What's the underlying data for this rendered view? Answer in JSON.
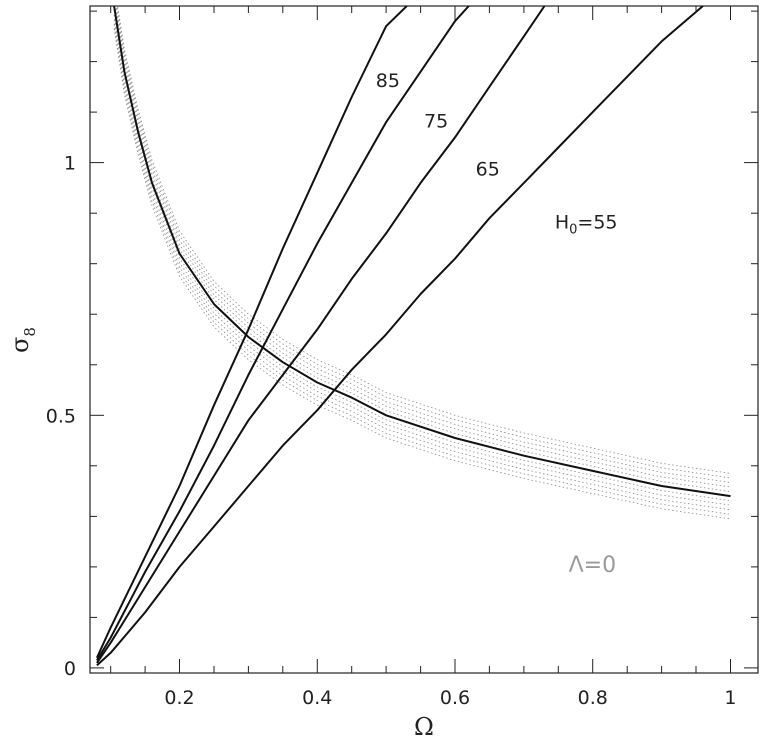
{
  "chart_data": {
    "type": "line",
    "title": "",
    "xlabel": "Ω",
    "ylabel": "σ",
    "ylabel_subscript": "8",
    "xlim": [
      0.07,
      1.04
    ],
    "ylim": [
      -0.01,
      1.31
    ],
    "grid": false,
    "x_ticks": [
      {
        "value": 0.2,
        "label": "0.2"
      },
      {
        "value": 0.4,
        "label": "0.4"
      },
      {
        "value": 0.6,
        "label": "0.6"
      },
      {
        "value": 0.8,
        "label": "0.8"
      },
      {
        "value": 1.0,
        "label": "1"
      }
    ],
    "y_ticks": [
      {
        "value": 0.0,
        "label": "0"
      },
      {
        "value": 0.5,
        "label": "0.5"
      },
      {
        "value": 1.0,
        "label": "1"
      }
    ],
    "series": [
      {
        "name": "85",
        "x": [
          0.08,
          0.1,
          0.15,
          0.2,
          0.25,
          0.3,
          0.35,
          0.4,
          0.45,
          0.5,
          0.53
        ],
        "y": [
          0.02,
          0.08,
          0.22,
          0.36,
          0.52,
          0.67,
          0.83,
          0.98,
          1.13,
          1.27,
          1.31
        ]
      },
      {
        "name": "75",
        "x": [
          0.08,
          0.1,
          0.15,
          0.2,
          0.25,
          0.3,
          0.35,
          0.4,
          0.45,
          0.5,
          0.55,
          0.6,
          0.62
        ],
        "y": [
          0.015,
          0.06,
          0.19,
          0.31,
          0.44,
          0.58,
          0.71,
          0.84,
          0.96,
          1.08,
          1.18,
          1.28,
          1.31
        ]
      },
      {
        "name": "65",
        "x": [
          0.08,
          0.1,
          0.15,
          0.2,
          0.25,
          0.3,
          0.35,
          0.4,
          0.45,
          0.5,
          0.55,
          0.6,
          0.65,
          0.7,
          0.73
        ],
        "y": [
          0.01,
          0.05,
          0.16,
          0.27,
          0.38,
          0.49,
          0.58,
          0.67,
          0.77,
          0.86,
          0.96,
          1.05,
          1.15,
          1.25,
          1.31
        ]
      },
      {
        "name": "H0=55",
        "x": [
          0.08,
          0.1,
          0.15,
          0.2,
          0.25,
          0.3,
          0.35,
          0.4,
          0.45,
          0.5,
          0.55,
          0.6,
          0.65,
          0.7,
          0.75,
          0.8,
          0.85,
          0.9,
          0.96
        ],
        "y": [
          0.005,
          0.03,
          0.11,
          0.2,
          0.28,
          0.36,
          0.44,
          0.51,
          0.59,
          0.66,
          0.74,
          0.81,
          0.89,
          0.96,
          1.03,
          1.1,
          1.17,
          1.24,
          1.31
        ]
      },
      {
        "name": "",
        "x": [
          0.105,
          0.12,
          0.14,
          0.16,
          0.2,
          0.25,
          0.3,
          0.35,
          0.4,
          0.45,
          0.5,
          0.6,
          0.7,
          0.8,
          0.9,
          1.0
        ],
        "y": [
          1.31,
          1.18,
          1.06,
          0.96,
          0.82,
          0.72,
          0.655,
          0.605,
          0.565,
          0.535,
          0.5,
          0.455,
          0.42,
          0.39,
          0.36,
          0.34
        ],
        "band": 0.045
      }
    ],
    "curve_labels": [
      {
        "text": "85",
        "x": 0.485,
        "y": 1.15
      },
      {
        "text": "75",
        "x": 0.555,
        "y": 1.07
      },
      {
        "text": "65",
        "x": 0.63,
        "y": 0.975
      },
      {
        "text": "H",
        "sub": "0",
        "tail": "=55",
        "x": 0.745,
        "y": 0.87
      }
    ],
    "annotations": [
      {
        "text": "Λ=0",
        "x": 0.765,
        "y": 0.19
      }
    ]
  }
}
